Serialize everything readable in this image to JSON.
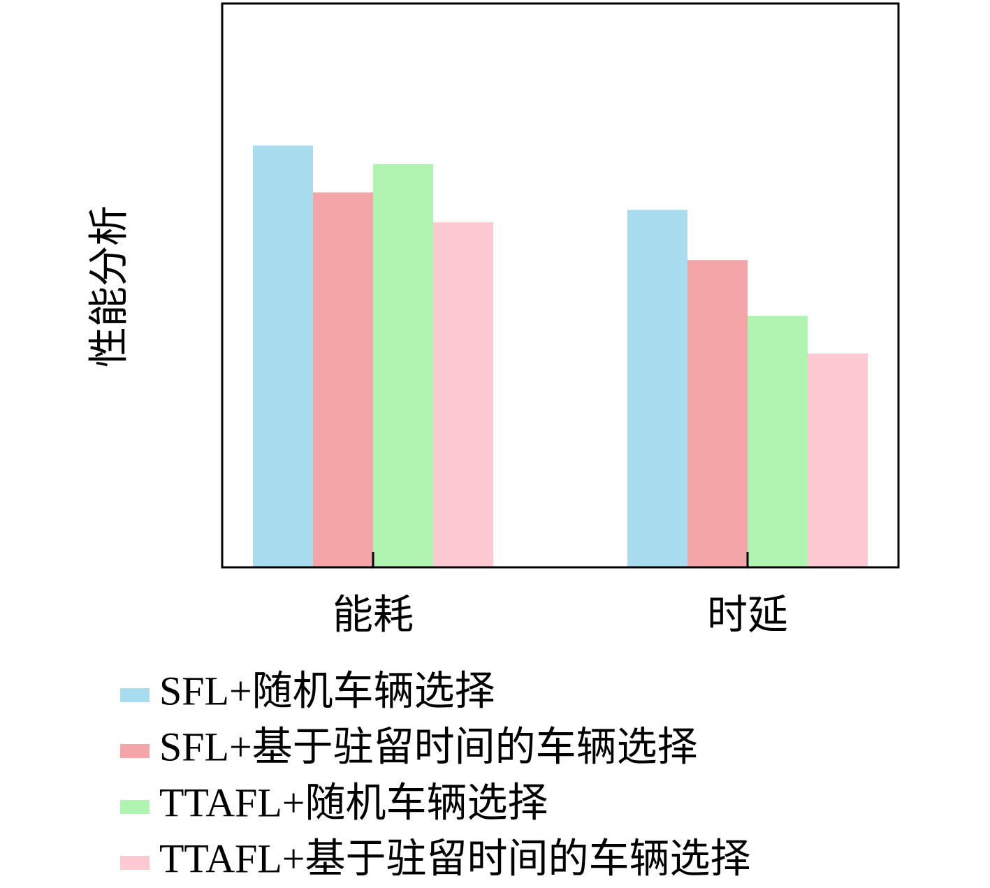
{
  "chart_data": {
    "type": "bar",
    "ylabel": "性能分析",
    "categories": [
      "能耗",
      "时延"
    ],
    "series": [
      {
        "name": "SFL+随机车辆选择",
        "color": "#a9dcef",
        "values": [
          0.748,
          0.634
        ]
      },
      {
        "name": "SFL+基于驻留时间的车辆选择",
        "color": "#f4a5a8",
        "values": [
          0.665,
          0.545
        ]
      },
      {
        "name": "TTAFL+随机车辆选择",
        "color": "#b1f3b0",
        "values": [
          0.715,
          0.446
        ]
      },
      {
        "name": "TTAFL+基于驻留时间的车辆选择",
        "color": "#fdc9d3",
        "values": [
          0.612,
          0.379
        ]
      }
    ],
    "ylim": [
      0,
      1
    ]
  }
}
